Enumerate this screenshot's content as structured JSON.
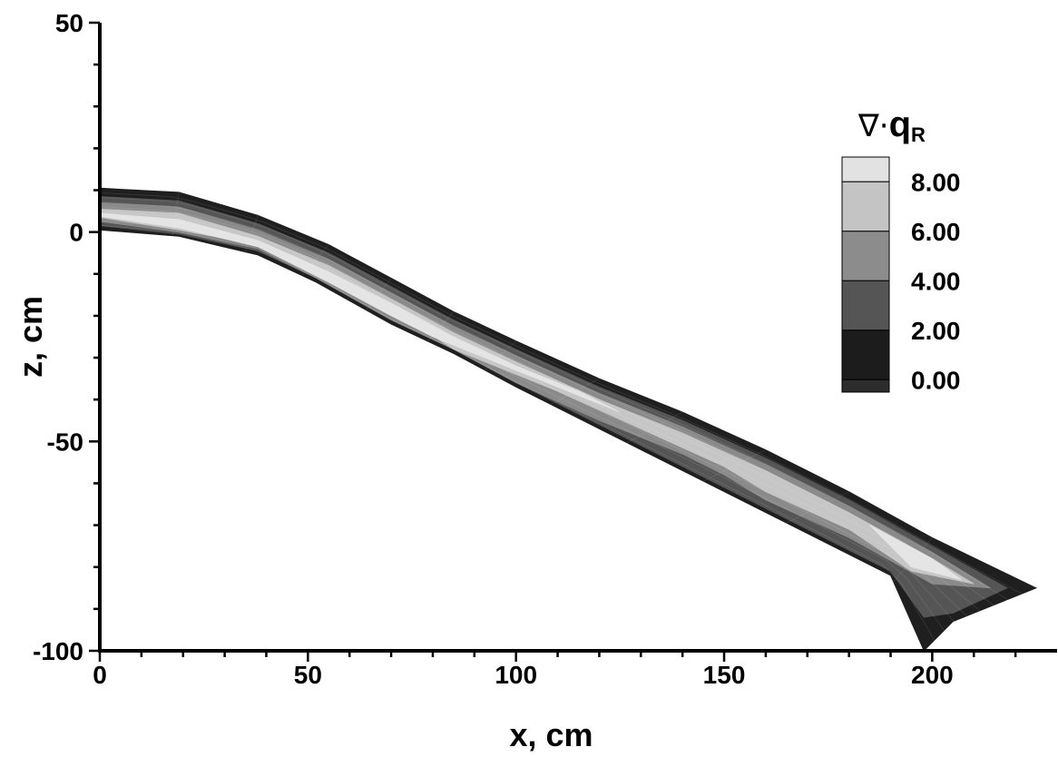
{
  "chart_data": {
    "type": "contour",
    "xlabel": "x, cm",
    "ylabel": "z, cm",
    "xlim": [
      0,
      230
    ],
    "ylim": [
      -100,
      50
    ],
    "x_ticks": [
      0,
      50,
      100,
      150,
      200
    ],
    "y_ticks": [
      50,
      0,
      -50,
      -100
    ],
    "legend": {
      "title_symbol": "∇·",
      "title_var": "q",
      "title_sub": "R",
      "placement": "top-right",
      "levels": [
        "8.00",
        "6.00",
        "4.00",
        "2.00",
        "0.00"
      ],
      "bands": [
        {
          "from": 8,
          "to": 9,
          "color": "#e2e2e2"
        },
        {
          "from": 6,
          "to": 8,
          "color": "#c4c4c4"
        },
        {
          "from": 4,
          "to": 6,
          "color": "#8c8c8c"
        },
        {
          "from": 2,
          "to": 4,
          "color": "#555555"
        },
        {
          "from": 0,
          "to": 2,
          "color": "#1c1c1c"
        },
        {
          "from": -1,
          "to": 0,
          "color": "#2d2d2d"
        }
      ]
    },
    "domain": {
      "top_edge": [
        [
          0,
          10.5
        ],
        [
          19,
          9.5
        ],
        [
          38,
          4
        ],
        [
          55,
          -3
        ],
        [
          70,
          -11
        ],
        [
          85,
          -19
        ],
        [
          100,
          -26
        ],
        [
          120,
          -35
        ],
        [
          140,
          -43
        ],
        [
          160,
          -52
        ],
        [
          180,
          -62
        ],
        [
          200,
          -73
        ],
        [
          225,
          -85
        ]
      ],
      "bottom_edge": [
        [
          0,
          0.5
        ],
        [
          19,
          -1
        ],
        [
          38,
          -5.5
        ],
        [
          52,
          -12
        ],
        [
          70,
          -22
        ],
        [
          85,
          -29
        ],
        [
          100,
          -37
        ],
        [
          120,
          -47
        ],
        [
          140,
          -57
        ],
        [
          160,
          -67
        ],
        [
          190,
          -82
        ],
        [
          198,
          -100
        ]
      ]
    },
    "regions": [
      {
        "level": "dark",
        "color": "#1f1f1f",
        "points": [
          [
            0,
            10.5
          ],
          [
            19,
            9.5
          ],
          [
            38,
            4
          ],
          [
            55,
            -3
          ],
          [
            70,
            -11
          ],
          [
            85,
            -19
          ],
          [
            100,
            -26
          ],
          [
            120,
            -35
          ],
          [
            140,
            -43
          ],
          [
            160,
            -52
          ],
          [
            180,
            -62
          ],
          [
            200,
            -73
          ],
          [
            225,
            -85
          ],
          [
            205,
            -93
          ],
          [
            198,
            -100
          ],
          [
            190,
            -82
          ],
          [
            160,
            -67
          ],
          [
            140,
            -57
          ],
          [
            120,
            -47
          ],
          [
            100,
            -37
          ],
          [
            85,
            -29
          ],
          [
            70,
            -22
          ],
          [
            52,
            -12
          ],
          [
            38,
            -5.5
          ],
          [
            19,
            -1
          ],
          [
            0,
            0.5
          ]
        ]
      },
      {
        "level": "2-4",
        "color": "#555555",
        "points": [
          [
            0,
            8.5
          ],
          [
            19,
            7.5
          ],
          [
            38,
            2
          ],
          [
            55,
            -5
          ],
          [
            70,
            -13
          ],
          [
            85,
            -21
          ],
          [
            100,
            -28
          ],
          [
            120,
            -37
          ],
          [
            140,
            -45
          ],
          [
            160,
            -54
          ],
          [
            180,
            -64
          ],
          [
            200,
            -75
          ],
          [
            218,
            -85
          ],
          [
            205,
            -91
          ],
          [
            198,
            -92
          ],
          [
            190,
            -81
          ],
          [
            160,
            -66
          ],
          [
            140,
            -56
          ],
          [
            120,
            -46
          ],
          [
            100,
            -36
          ],
          [
            85,
            -28
          ],
          [
            70,
            -21
          ],
          [
            52,
            -11
          ],
          [
            38,
            -4.5
          ],
          [
            19,
            -0.5
          ],
          [
            0,
            1.5
          ]
        ]
      },
      {
        "level": "4-6",
        "color": "#8a8a8a",
        "points": [
          [
            0,
            7
          ],
          [
            19,
            6
          ],
          [
            38,
            0.5
          ],
          [
            55,
            -6.5
          ],
          [
            70,
            -14.5
          ],
          [
            85,
            -22.5
          ],
          [
            100,
            -29.5
          ],
          [
            120,
            -38.5
          ],
          [
            140,
            -46.5
          ],
          [
            160,
            -55.5
          ],
          [
            180,
            -65.5
          ],
          [
            200,
            -76.5
          ],
          [
            214,
            -85
          ],
          [
            200,
            -84
          ],
          [
            180,
            -73
          ],
          [
            160,
            -64
          ],
          [
            150,
            -58
          ],
          [
            140,
            -53
          ],
          [
            120,
            -45
          ],
          [
            100,
            -36
          ],
          [
            85,
            -28
          ],
          [
            70,
            -21
          ],
          [
            52,
            -11
          ],
          [
            38,
            -4
          ],
          [
            19,
            0
          ],
          [
            0,
            2.5
          ]
        ]
      },
      {
        "level": "6-8",
        "color": "#c6c6c6",
        "points": [
          [
            0,
            5.5
          ],
          [
            19,
            4.5
          ],
          [
            38,
            -1
          ],
          [
            55,
            -8
          ],
          [
            70,
            -16
          ],
          [
            85,
            -24
          ],
          [
            100,
            -31
          ],
          [
            120,
            -40
          ],
          [
            140,
            -48
          ],
          [
            160,
            -57
          ],
          [
            180,
            -67
          ],
          [
            200,
            -78
          ],
          [
            210,
            -84
          ],
          [
            195,
            -81
          ],
          [
            180,
            -71
          ],
          [
            160,
            -62
          ],
          [
            150,
            -56
          ],
          [
            130,
            -47
          ],
          [
            110,
            -38
          ],
          [
            95,
            -32
          ],
          [
            85,
            -28
          ],
          [
            68,
            -17
          ],
          [
            58,
            -13
          ],
          [
            38,
            -3
          ],
          [
            19,
            0.5
          ],
          [
            0,
            3.5
          ]
        ]
      },
      {
        "level": "8+",
        "color": "#e4e4e4",
        "points": [
          [
            0,
            4.5
          ],
          [
            19,
            3
          ],
          [
            38,
            -2
          ],
          [
            55,
            -9.5
          ],
          [
            70,
            -17
          ],
          [
            85,
            -25
          ],
          [
            100,
            -32
          ],
          [
            115,
            -38
          ],
          [
            125,
            -43
          ],
          [
            110,
            -37
          ],
          [
            95,
            -31
          ],
          [
            80,
            -25
          ],
          [
            70,
            -20
          ],
          [
            55,
            -12
          ],
          [
            38,
            -3.5
          ],
          [
            19,
            1
          ],
          [
            0,
            3.8
          ]
        ]
      },
      {
        "level": "8+",
        "color": "#e4e4e4",
        "points": [
          [
            185,
            -70
          ],
          [
            200,
            -78
          ],
          [
            207,
            -83
          ],
          [
            195,
            -80
          ]
        ]
      }
    ]
  }
}
